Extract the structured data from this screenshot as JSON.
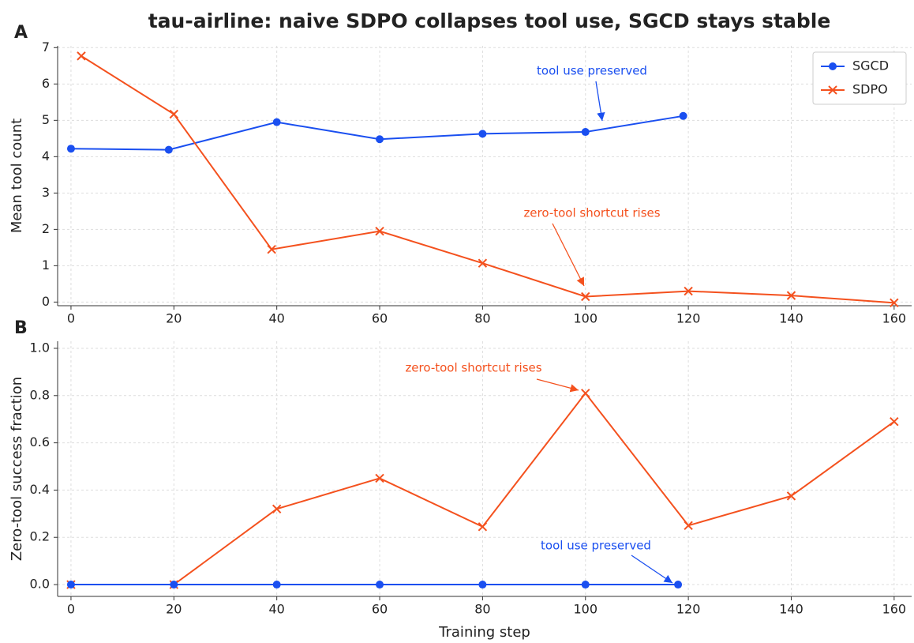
{
  "title": "tau-airline: naive SDPO collapses tool use, SGCD stays stable",
  "chart_data": [
    {
      "type": "line",
      "panel": "A",
      "ylabel": "Mean tool count",
      "xlim": [
        -2.6,
        163.4
      ],
      "xticks": [
        0,
        20,
        40,
        60,
        80,
        100,
        120,
        140,
        160
      ],
      "ylim": [
        -0.1,
        7.05
      ],
      "yticks": [
        0,
        1,
        2,
        3,
        4,
        5,
        6,
        7
      ],
      "grid": true,
      "legend": "upper right",
      "series": [
        {
          "name": "SGCD",
          "color": "#1a4ff0",
          "marker": "circle",
          "x": [
            0,
            19,
            40,
            60,
            80,
            100,
            119
          ],
          "values": [
            4.22,
            4.19,
            4.95,
            4.48,
            4.63,
            4.68,
            5.12
          ]
        },
        {
          "name": "SDPO",
          "color": "#f4511e",
          "marker": "x",
          "x": [
            2,
            20,
            39,
            60,
            80,
            100,
            120,
            140,
            160
          ],
          "values": [
            6.77,
            5.17,
            1.45,
            1.95,
            1.07,
            0.15,
            0.3,
            0.18,
            -0.02
          ]
        }
      ],
      "annotations": [
        {
          "text": "tool use preserved",
          "color": "#1a4ff0"
        },
        {
          "text": "zero-tool shortcut rises",
          "color": "#f4511e"
        }
      ]
    },
    {
      "type": "line",
      "panel": "B",
      "ylabel": "Zero-tool success fraction",
      "xlabel": "Training step",
      "xlim": [
        -2.6,
        163.4
      ],
      "xticks": [
        0,
        20,
        40,
        60,
        80,
        100,
        120,
        140,
        160
      ],
      "ylim": [
        -0.05,
        1.03
      ],
      "yticks": [
        {
          "value": 0,
          "label": "0.0"
        },
        0.2,
        0.4,
        0.6,
        0.8,
        {
          "value": 1,
          "label": "1.0"
        }
      ],
      "grid": true,
      "series": [
        {
          "color": "#f4511e",
          "marker": "x",
          "x": [
            0,
            20,
            40,
            60,
            80,
            100,
            120,
            140,
            160
          ],
          "values": [
            0,
            0,
            0.32,
            0.45,
            0.245,
            0.81,
            0.25,
            0.375,
            0.69
          ]
        },
        {
          "color": "#1a4ff0",
          "marker": "circle",
          "x": [
            0,
            20,
            40,
            60,
            80,
            100,
            118
          ],
          "values": [
            0,
            0,
            0,
            0,
            0,
            0,
            0
          ]
        }
      ],
      "annotations": [
        {
          "text": "zero-tool shortcut rises",
          "color": "#f4511e"
        },
        {
          "text": "tool use preserved",
          "color": "#1a4ff0"
        }
      ]
    }
  ]
}
